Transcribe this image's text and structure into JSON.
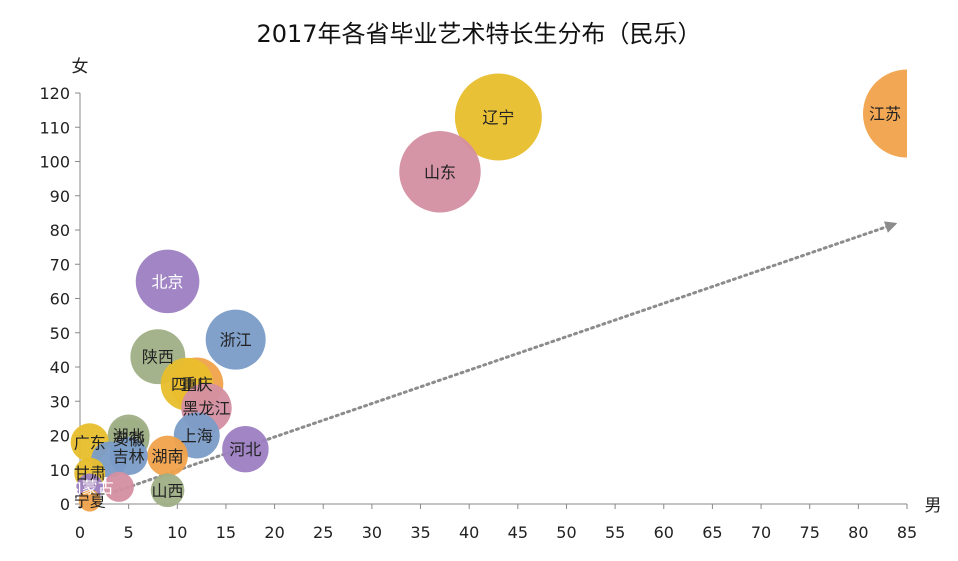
{
  "chart_data": {
    "type": "scatter",
    "title": "2017年各省毕业艺术特长生分布（民乐）",
    "xlabel": "男",
    "ylabel": "女",
    "xlim": [
      0,
      85
    ],
    "ylim": [
      0,
      120
    ],
    "x_ticks": [
      0,
      5,
      10,
      15,
      20,
      25,
      30,
      35,
      40,
      45,
      50,
      55,
      60,
      65,
      70,
      75,
      80,
      85
    ],
    "y_ticks": [
      0,
      10,
      20,
      30,
      40,
      50,
      60,
      70,
      80,
      90,
      100,
      110,
      120
    ],
    "grid": false,
    "legend": "none",
    "colors": {
      "gold": "#E8BE2C",
      "orange": "#F0A24A",
      "mauve": "#D48FA2",
      "purple": "#9C7EC2",
      "blue": "#7A9CC8",
      "sage": "#9FAF86",
      "trend": "#8C8C8C"
    },
    "points": [
      {
        "label": "江苏",
        "x": 85,
        "y": 114,
        "color": "orange",
        "label_color": "#222"
      },
      {
        "label": "辽宁",
        "x": 43,
        "y": 113,
        "color": "gold",
        "label_color": "#222"
      },
      {
        "label": "山东",
        "x": 37,
        "y": 97,
        "color": "mauve",
        "label_color": "#222"
      },
      {
        "label": "北京",
        "x": 9,
        "y": 65,
        "color": "purple",
        "label_color": "#ffffff"
      },
      {
        "label": "浙江",
        "x": 16,
        "y": 48,
        "color": "blue",
        "label_color": "#222"
      },
      {
        "label": "陕西",
        "x": 8,
        "y": 43,
        "color": "sage",
        "label_color": "#222"
      },
      {
        "label": "重庆",
        "x": 12,
        "y": 35,
        "color": "orange",
        "label_color": "#222"
      },
      {
        "label": "四川",
        "x": 11,
        "y": 35,
        "color": "gold",
        "label_color": "#222"
      },
      {
        "label": "黑龙江",
        "x": 13,
        "y": 28,
        "color": "mauve",
        "label_color": "#222"
      },
      {
        "label": "上海",
        "x": 12,
        "y": 20,
        "color": "blue",
        "label_color": "#222"
      },
      {
        "label": "河北",
        "x": 17,
        "y": 16,
        "color": "purple",
        "label_color": "#222"
      },
      {
        "label": "安徽",
        "x": 5,
        "y": 19,
        "color": "sage",
        "label_color": "#222"
      },
      {
        "label": "广东",
        "x": 1,
        "y": 18,
        "color": "gold",
        "label_color": "#222"
      },
      {
        "label": "湖南",
        "x": 9,
        "y": 14,
        "color": "orange",
        "label_color": "#222"
      },
      {
        "label": "山西",
        "x": 9,
        "y": 4,
        "color": "sage",
        "label_color": "#222"
      },
      {
        "label": "湖北",
        "x": 5,
        "y": 20,
        "color": "sage",
        "label_color": "#222"
      },
      {
        "label": "吉林",
        "x": 5,
        "y": 14,
        "color": "blue",
        "label_color": "#222"
      },
      {
        "label": "甘肃",
        "x": 1,
        "y": 9,
        "color": "gold",
        "label_color": "#222"
      },
      {
        "label": "内蒙古",
        "x": 1,
        "y": 5,
        "color": "purple",
        "label_color": "#ffffff"
      },
      {
        "label": "宁夏",
        "x": 1,
        "y": 1,
        "color": "orange",
        "label_color": "#222"
      },
      {
        "label": "",
        "x": 3,
        "y": 13,
        "color": "blue",
        "label_color": "#222"
      },
      {
        "label": "",
        "x": 4,
        "y": 5,
        "color": "mauve",
        "label_color": "#222"
      }
    ],
    "trend_arrow": {
      "from": [
        3,
        3
      ],
      "to": [
        84,
        82
      ]
    }
  }
}
